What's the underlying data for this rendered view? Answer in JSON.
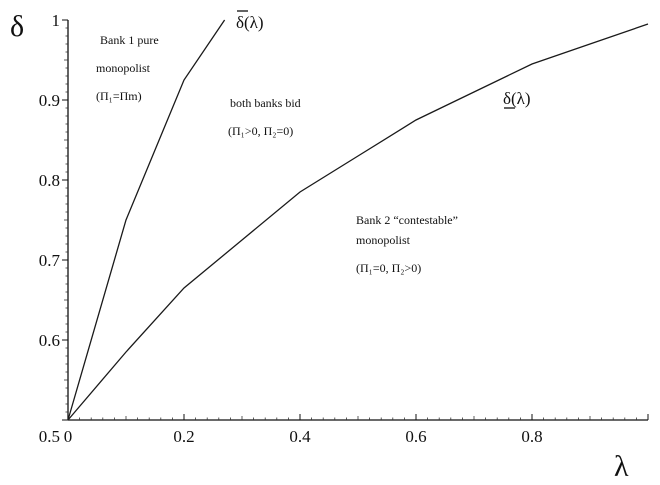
{
  "chart_data": {
    "type": "line",
    "xlabel": "λ",
    "ylabel": "δ",
    "xlim": [
      0,
      1
    ],
    "ylim": [
      0.5,
      1
    ],
    "x_ticks": [
      "0",
      "0.2",
      "0.4",
      "0.6",
      "0.8"
    ],
    "y_ticks": [
      "0.5",
      "0.6",
      "0.7",
      "0.8",
      "0.9",
      "1"
    ],
    "grid": false,
    "series": [
      {
        "name": "δ(λ)",
        "label_style": "overline",
        "x": [
          0,
          0.1,
          0.2,
          0.27
        ],
        "y": [
          0.5,
          0.75,
          0.925,
          1.0
        ]
      },
      {
        "name": "δ(λ)",
        "label_style": "underline",
        "x": [
          0,
          0.1,
          0.2,
          0.3,
          0.4,
          0.5,
          0.6,
          0.7,
          0.8,
          0.9,
          1.0
        ],
        "y": [
          0.5,
          0.585,
          0.665,
          0.725,
          0.785,
          0.83,
          0.875,
          0.91,
          0.945,
          0.97,
          0.995
        ]
      }
    ],
    "annotations": [
      {
        "id": "region-1",
        "lines": [
          "Bank 1 pure",
          "monopolist",
          "(Π₁=Πm)"
        ]
      },
      {
        "id": "region-2",
        "lines": [
          "both banks bid",
          "(Π₁>0, Π₂=0)"
        ]
      },
      {
        "id": "region-3",
        "lines": [
          "Bank 2 “contestable”",
          "monopolist",
          "(Π₁=0, Π₂>0)"
        ]
      }
    ]
  }
}
